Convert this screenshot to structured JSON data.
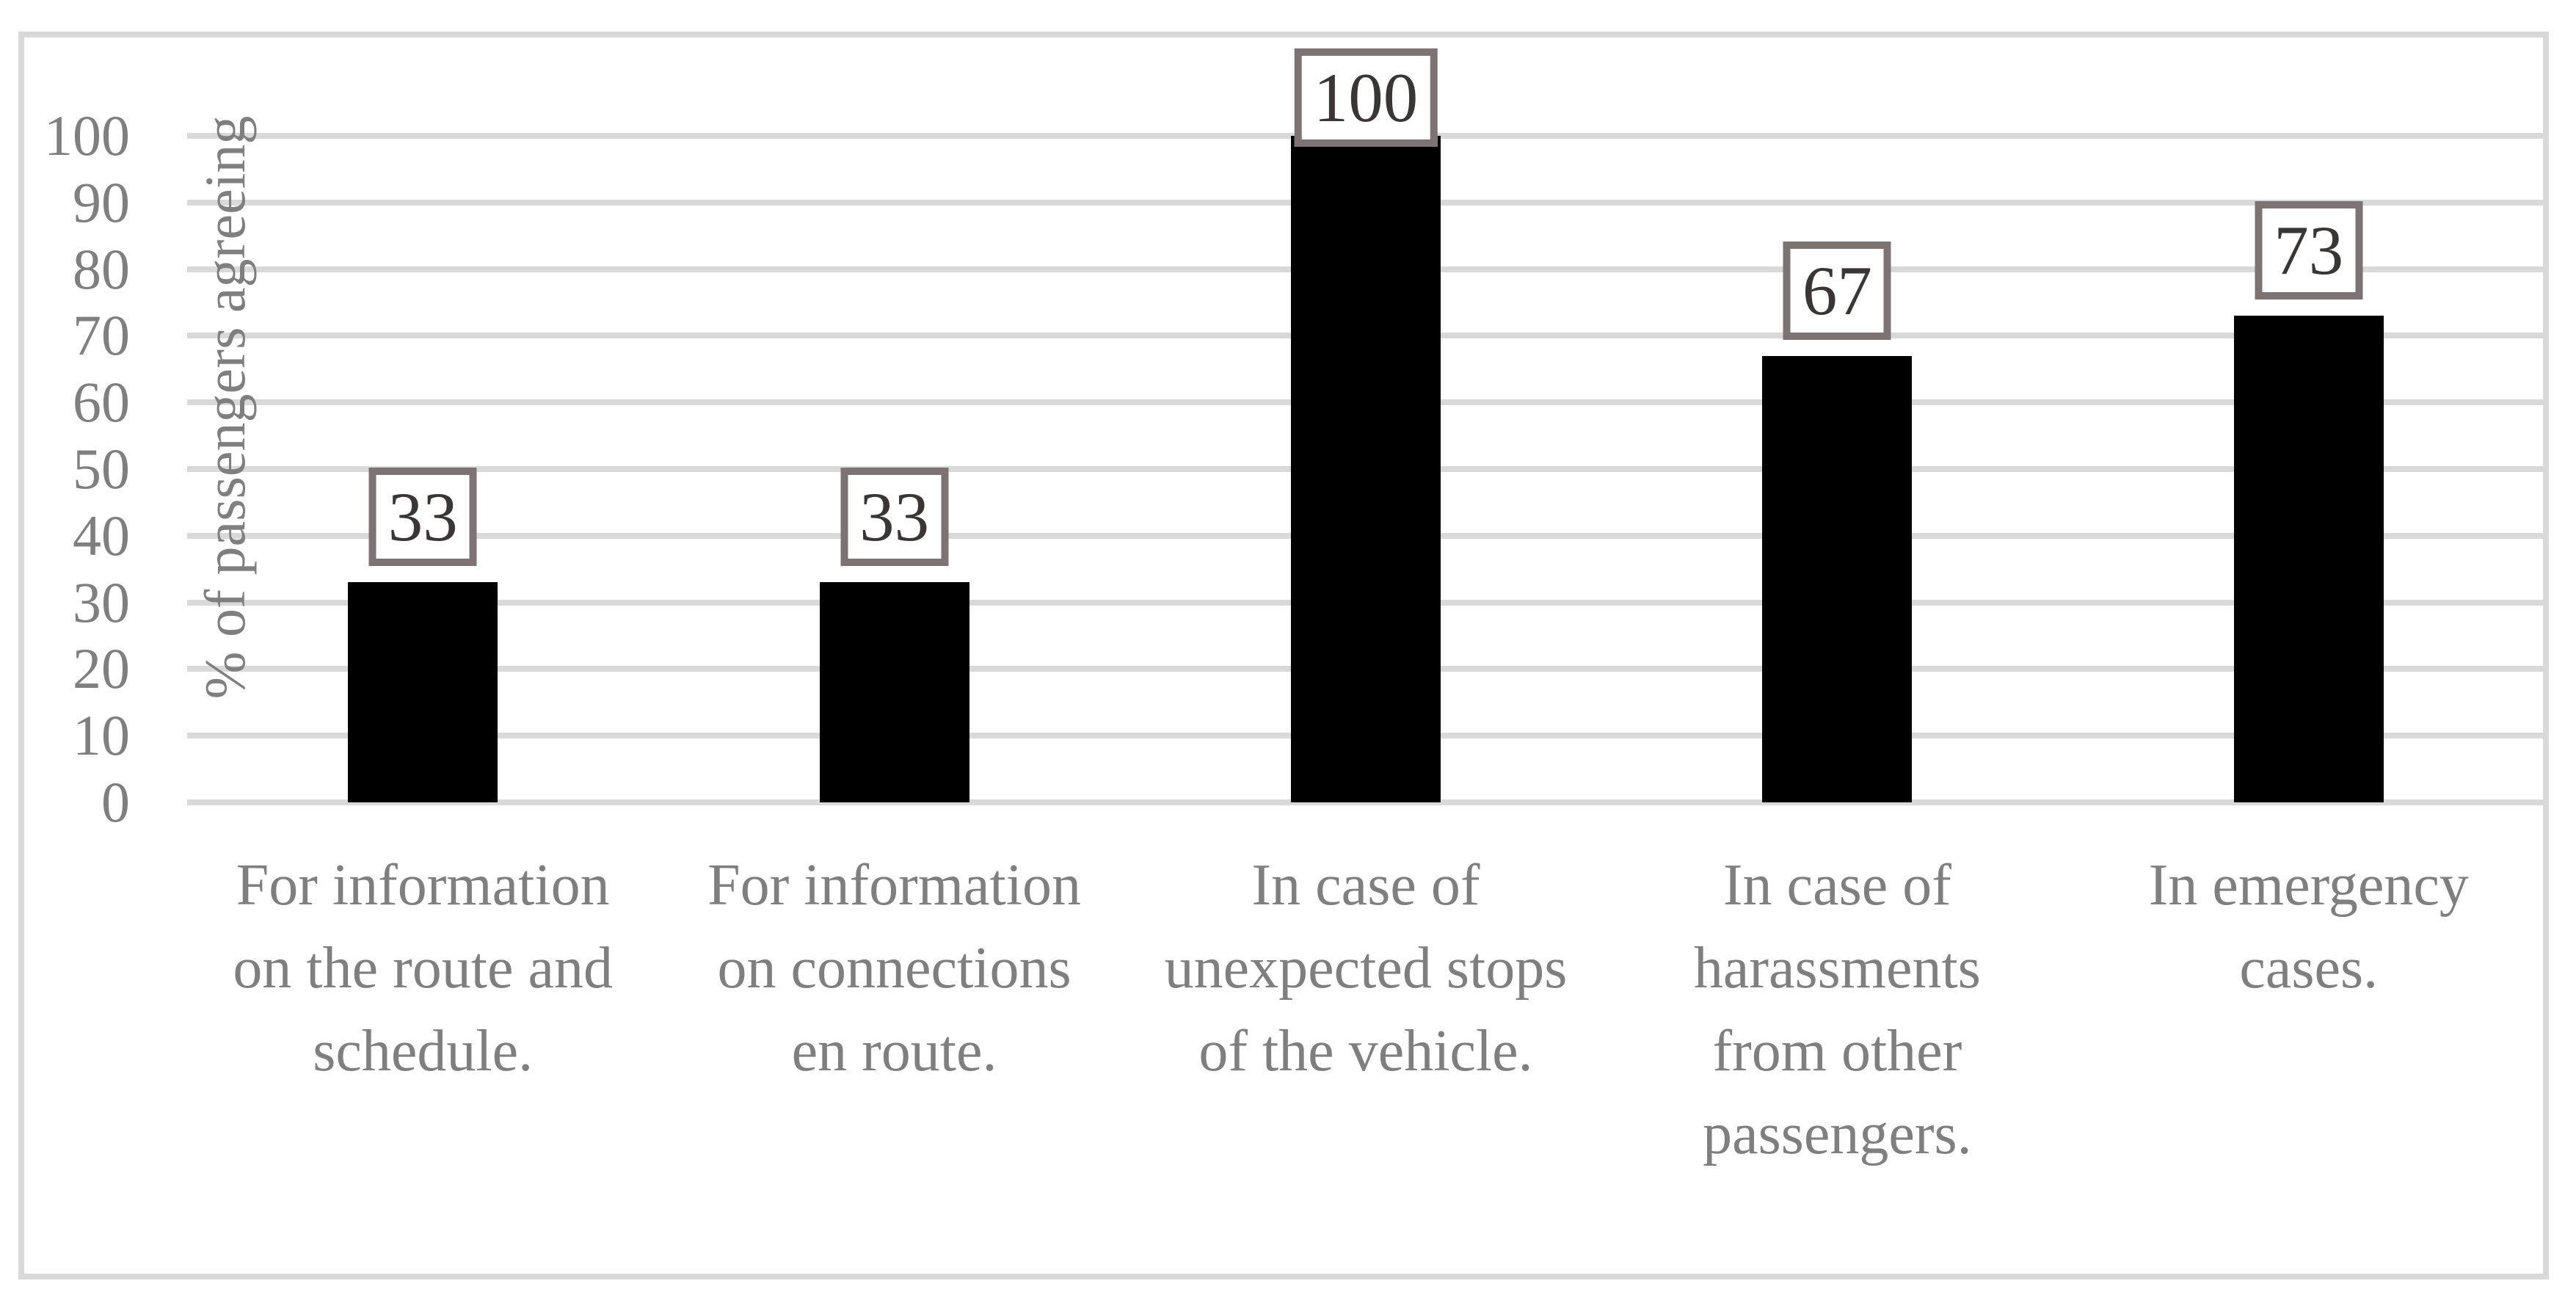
{
  "chart_data": {
    "type": "bar",
    "title": "",
    "categories": [
      "For information on the route and schedule.",
      "For information on connections en route.",
      "In case of unexpected stops of the vehicle.",
      "In case of harassments from other passengers.",
      "In emergency cases."
    ],
    "category_lines": [
      [
        "For information",
        "on the route and",
        "schedule."
      ],
      [
        "For information",
        "on connections",
        "en route."
      ],
      [
        "In case of",
        "unexpected stops",
        "of the vehicle."
      ],
      [
        "In case of",
        "harassments",
        "from other",
        "passengers."
      ],
      [
        "In emergency",
        "cases."
      ]
    ],
    "values": [
      33,
      33,
      100,
      67,
      73
    ],
    "data_labels": [
      "33",
      "33",
      "100",
      "67",
      "73"
    ],
    "xlabel": "",
    "ylabel": "% of passengers agreeing",
    "ylim": [
      0,
      100
    ],
    "yticks": [
      0,
      10,
      20,
      30,
      40,
      50,
      60,
      70,
      80,
      90,
      100
    ],
    "ytick_labels": [
      "0",
      "10",
      "20",
      "30",
      "40",
      "50",
      "60",
      "70",
      "80",
      "90",
      "100"
    ],
    "grid": true,
    "legend": false,
    "bar_orientation": "vertical"
  },
  "colors": {
    "background": "#ffffff",
    "bar": "#000000",
    "gridline": "#d9d9d9",
    "frame_border": "#d9d9d9",
    "axis_text": "#7f7f7f",
    "data_label_text": "#3a3636",
    "data_label_box_border": "#7d7373",
    "data_label_box_fill": "#ffffff"
  }
}
